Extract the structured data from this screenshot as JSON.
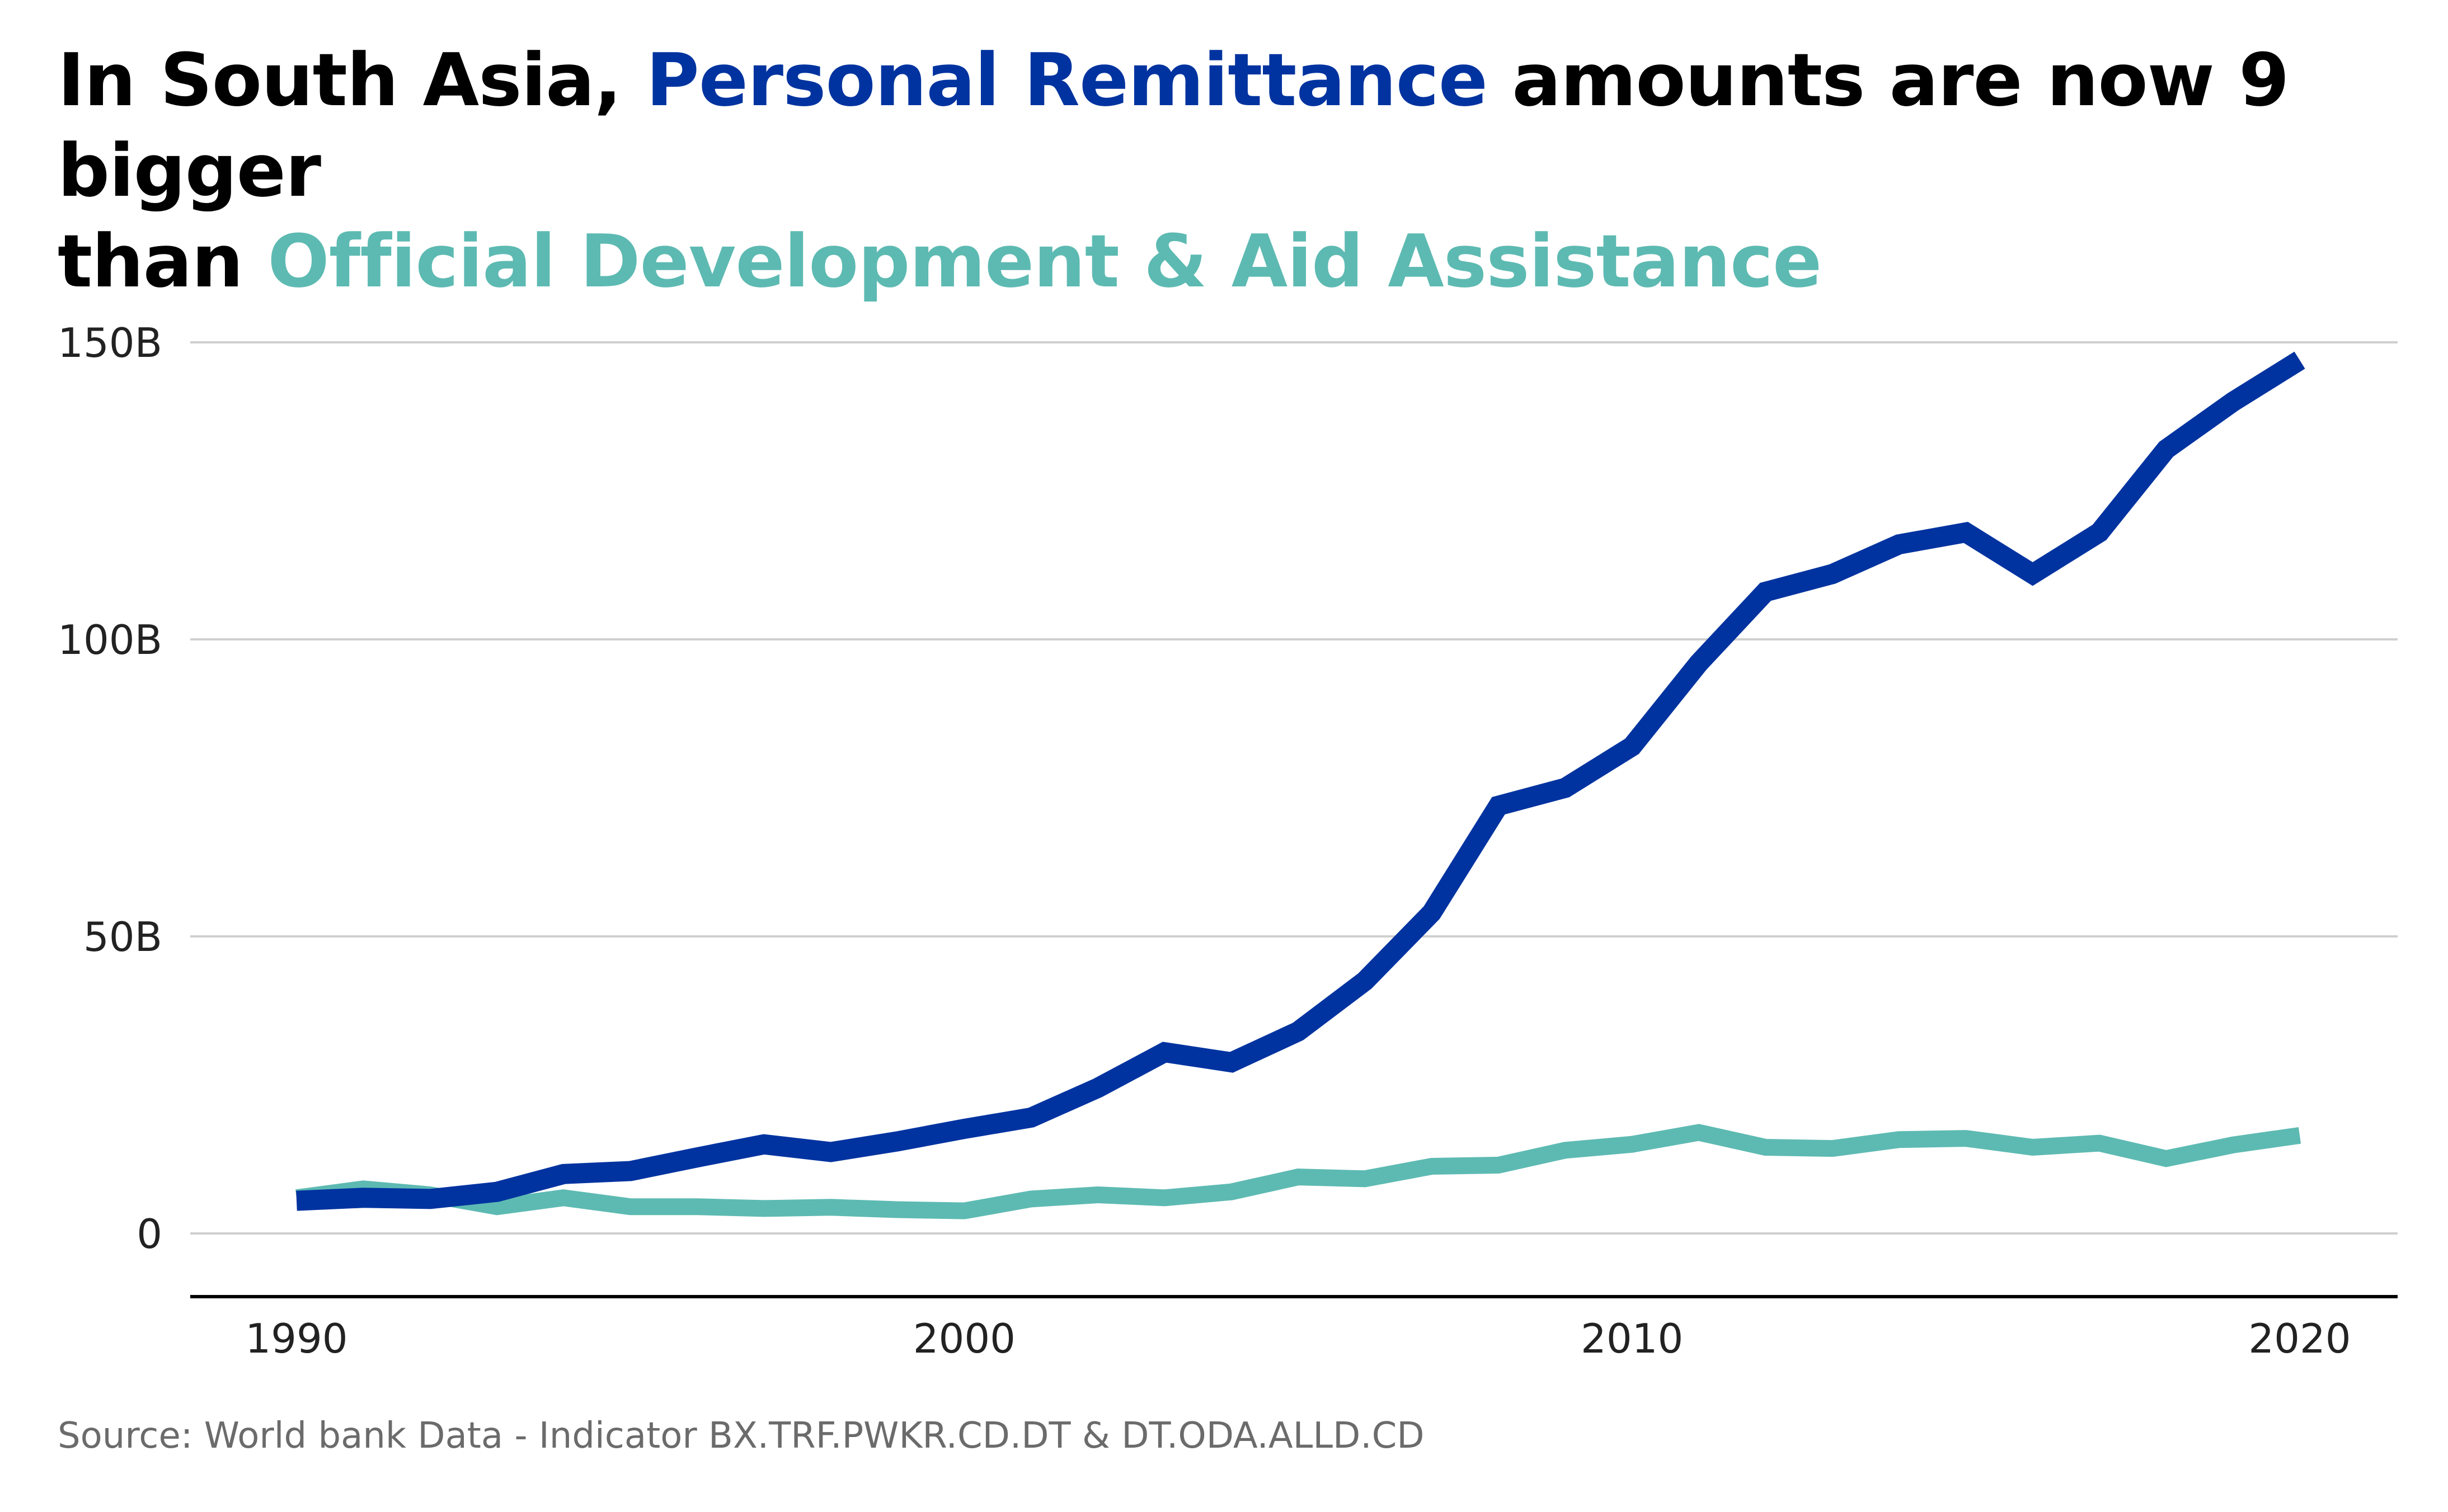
{
  "title": {
    "part1": "In South Asia, ",
    "highlight1": "Personal Remittance",
    "part2": " amounts are now 9 bigger",
    "part3": "than ",
    "highlight2": "Official Development & Aid Assistance"
  },
  "source": "Source: World bank Data - Indicator BX.TRF.PWKR.CD.DT & DT.ODA.ALLD.CD",
  "colors": {
    "remittance": "#0033A0",
    "oda": "#5DBAB2",
    "grid": "#cfcfcf",
    "axis": "#000000"
  },
  "chart_data": {
    "type": "line",
    "x": [
      1990,
      1991,
      1992,
      1993,
      1994,
      1995,
      1996,
      1997,
      1998,
      1999,
      2000,
      2001,
      2002,
      2003,
      2004,
      2005,
      2006,
      2007,
      2008,
      2009,
      2010,
      2011,
      2012,
      2013,
      2014,
      2015,
      2016,
      2017,
      2018,
      2019,
      2020
    ],
    "series": [
      {
        "name": "Personal Remittance",
        "color": "#0033A0",
        "values": [
          5.5,
          6,
          5.8,
          7,
          10,
          10.5,
          12.8,
          15,
          13.7,
          15.5,
          17.6,
          19.5,
          24.5,
          30.5,
          28.8,
          34,
          42.5,
          54,
          72,
          75,
          82,
          96,
          108,
          111,
          116,
          118,
          111,
          118,
          132,
          140,
          147
        ]
      },
      {
        "name": "Official Development & Aid Assistance",
        "color": "#5DBAB2",
        "values": [
          6,
          7.5,
          6.5,
          4.5,
          6,
          4.5,
          4.5,
          4.2,
          4.4,
          4,
          3.8,
          5.8,
          6.5,
          6,
          7,
          9.5,
          9.2,
          11.3,
          11.5,
          14,
          15,
          17,
          14.5,
          14.3,
          15.8,
          16,
          14.5,
          15.2,
          12.6,
          14.9,
          16.5
        ]
      }
    ],
    "xticks": [
      1990,
      2000,
      2010,
      2020
    ],
    "yticks": [
      0,
      50,
      100,
      150
    ],
    "ytick_labels": [
      "0",
      "50B",
      "100B",
      "150B"
    ],
    "xlim": [
      1990,
      2020
    ],
    "ylim": [
      0,
      150
    ],
    "grid": "horizontal"
  }
}
